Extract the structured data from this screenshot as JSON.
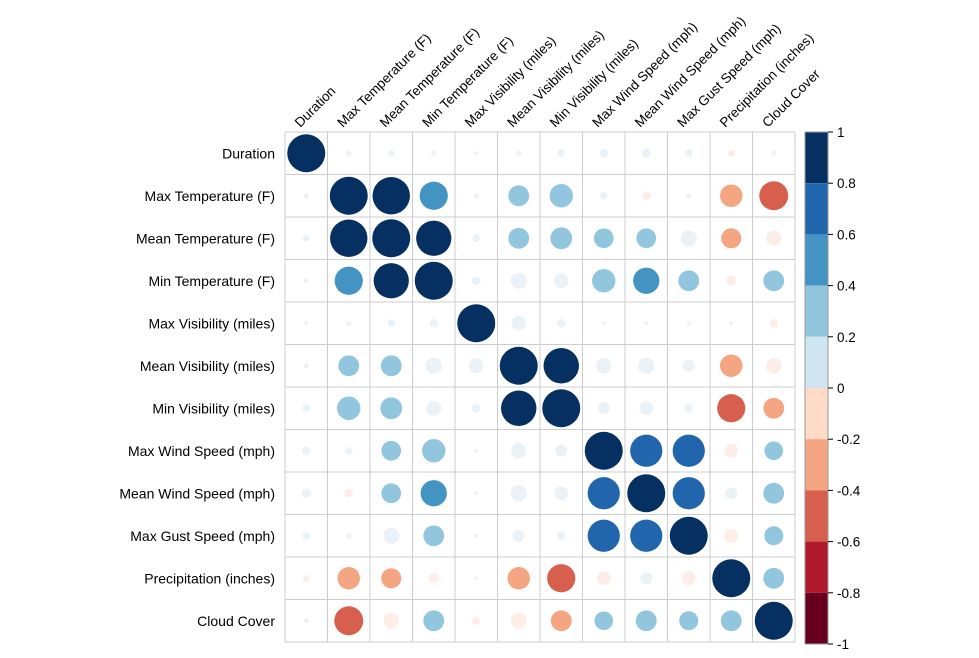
{
  "chart_data": {
    "type": "heatmap",
    "variables": [
      "Duration",
      "Max Temperature (F)",
      "Mean Temperature (F)",
      "Min Temperature (F)",
      "Max Visibility (miles)",
      "Mean Visibility (miles)",
      "Min Visibility (miles)",
      "Max Wind Speed (mph)",
      "Mean Wind Speed (mph)",
      "Max Gust Speed (mph)",
      "Precipitation (inches)",
      "Cloud Cover"
    ],
    "matrix": [
      [
        1.0,
        0.02,
        0.03,
        0.02,
        0.01,
        0.02,
        0.04,
        0.05,
        0.06,
        0.04,
        -0.03,
        0.02
      ],
      [
        0.02,
        1.0,
        0.97,
        0.55,
        0.02,
        0.3,
        0.38,
        0.04,
        -0.05,
        0.02,
        -0.35,
        -0.58
      ],
      [
        0.03,
        0.97,
        1.0,
        0.86,
        0.04,
        0.3,
        0.33,
        0.27,
        0.27,
        0.18,
        -0.28,
        -0.16
      ],
      [
        0.02,
        0.55,
        0.86,
        1.0,
        0.05,
        0.18,
        0.15,
        0.38,
        0.48,
        0.3,
        -0.07,
        0.3
      ],
      [
        0.01,
        0.02,
        0.04,
        0.05,
        1.0,
        0.15,
        0.05,
        0.01,
        0.01,
        0.01,
        0.01,
        -0.05
      ],
      [
        0.02,
        0.3,
        0.3,
        0.18,
        0.15,
        1.0,
        0.87,
        0.16,
        0.18,
        0.1,
        -0.35,
        -0.17
      ],
      [
        0.04,
        0.38,
        0.33,
        0.15,
        0.05,
        0.87,
        1.0,
        0.1,
        0.13,
        0.05,
        -0.55,
        -0.3
      ],
      [
        0.05,
        0.04,
        0.27,
        0.38,
        0.01,
        0.16,
        0.1,
        1.0,
        0.72,
        0.72,
        -0.13,
        0.24
      ],
      [
        0.06,
        -0.05,
        0.27,
        0.48,
        0.01,
        0.18,
        0.13,
        0.72,
        1.0,
        0.72,
        0.1,
        0.3
      ],
      [
        0.04,
        0.02,
        0.18,
        0.3,
        0.01,
        0.1,
        0.05,
        0.72,
        0.72,
        1.0,
        -0.13,
        0.25
      ],
      [
        -0.03,
        -0.35,
        -0.28,
        -0.07,
        0.01,
        -0.35,
        -0.55,
        -0.13,
        0.1,
        -0.13,
        1.0,
        0.3
      ],
      [
        0.02,
        -0.58,
        -0.16,
        0.3,
        -0.05,
        -0.17,
        -0.3,
        0.24,
        0.3,
        0.25,
        0.3,
        1.0
      ]
    ],
    "glyph": "circle",
    "colorbar": {
      "ticks": [
        "1",
        "0.8",
        "0.6",
        "0.4",
        "0.2",
        "0",
        "-0.2",
        "-0.4",
        "-0.6",
        "-0.8",
        "-1"
      ],
      "range": [
        -1,
        1
      ],
      "placement": "right"
    },
    "palette": {
      "negative_strong": "#67001F",
      "negative_mid": "#D6604D",
      "neutral": "#F7F7F7",
      "positive_mid": "#4393C3",
      "positive_strong": "#053061"
    },
    "grid": true
  }
}
